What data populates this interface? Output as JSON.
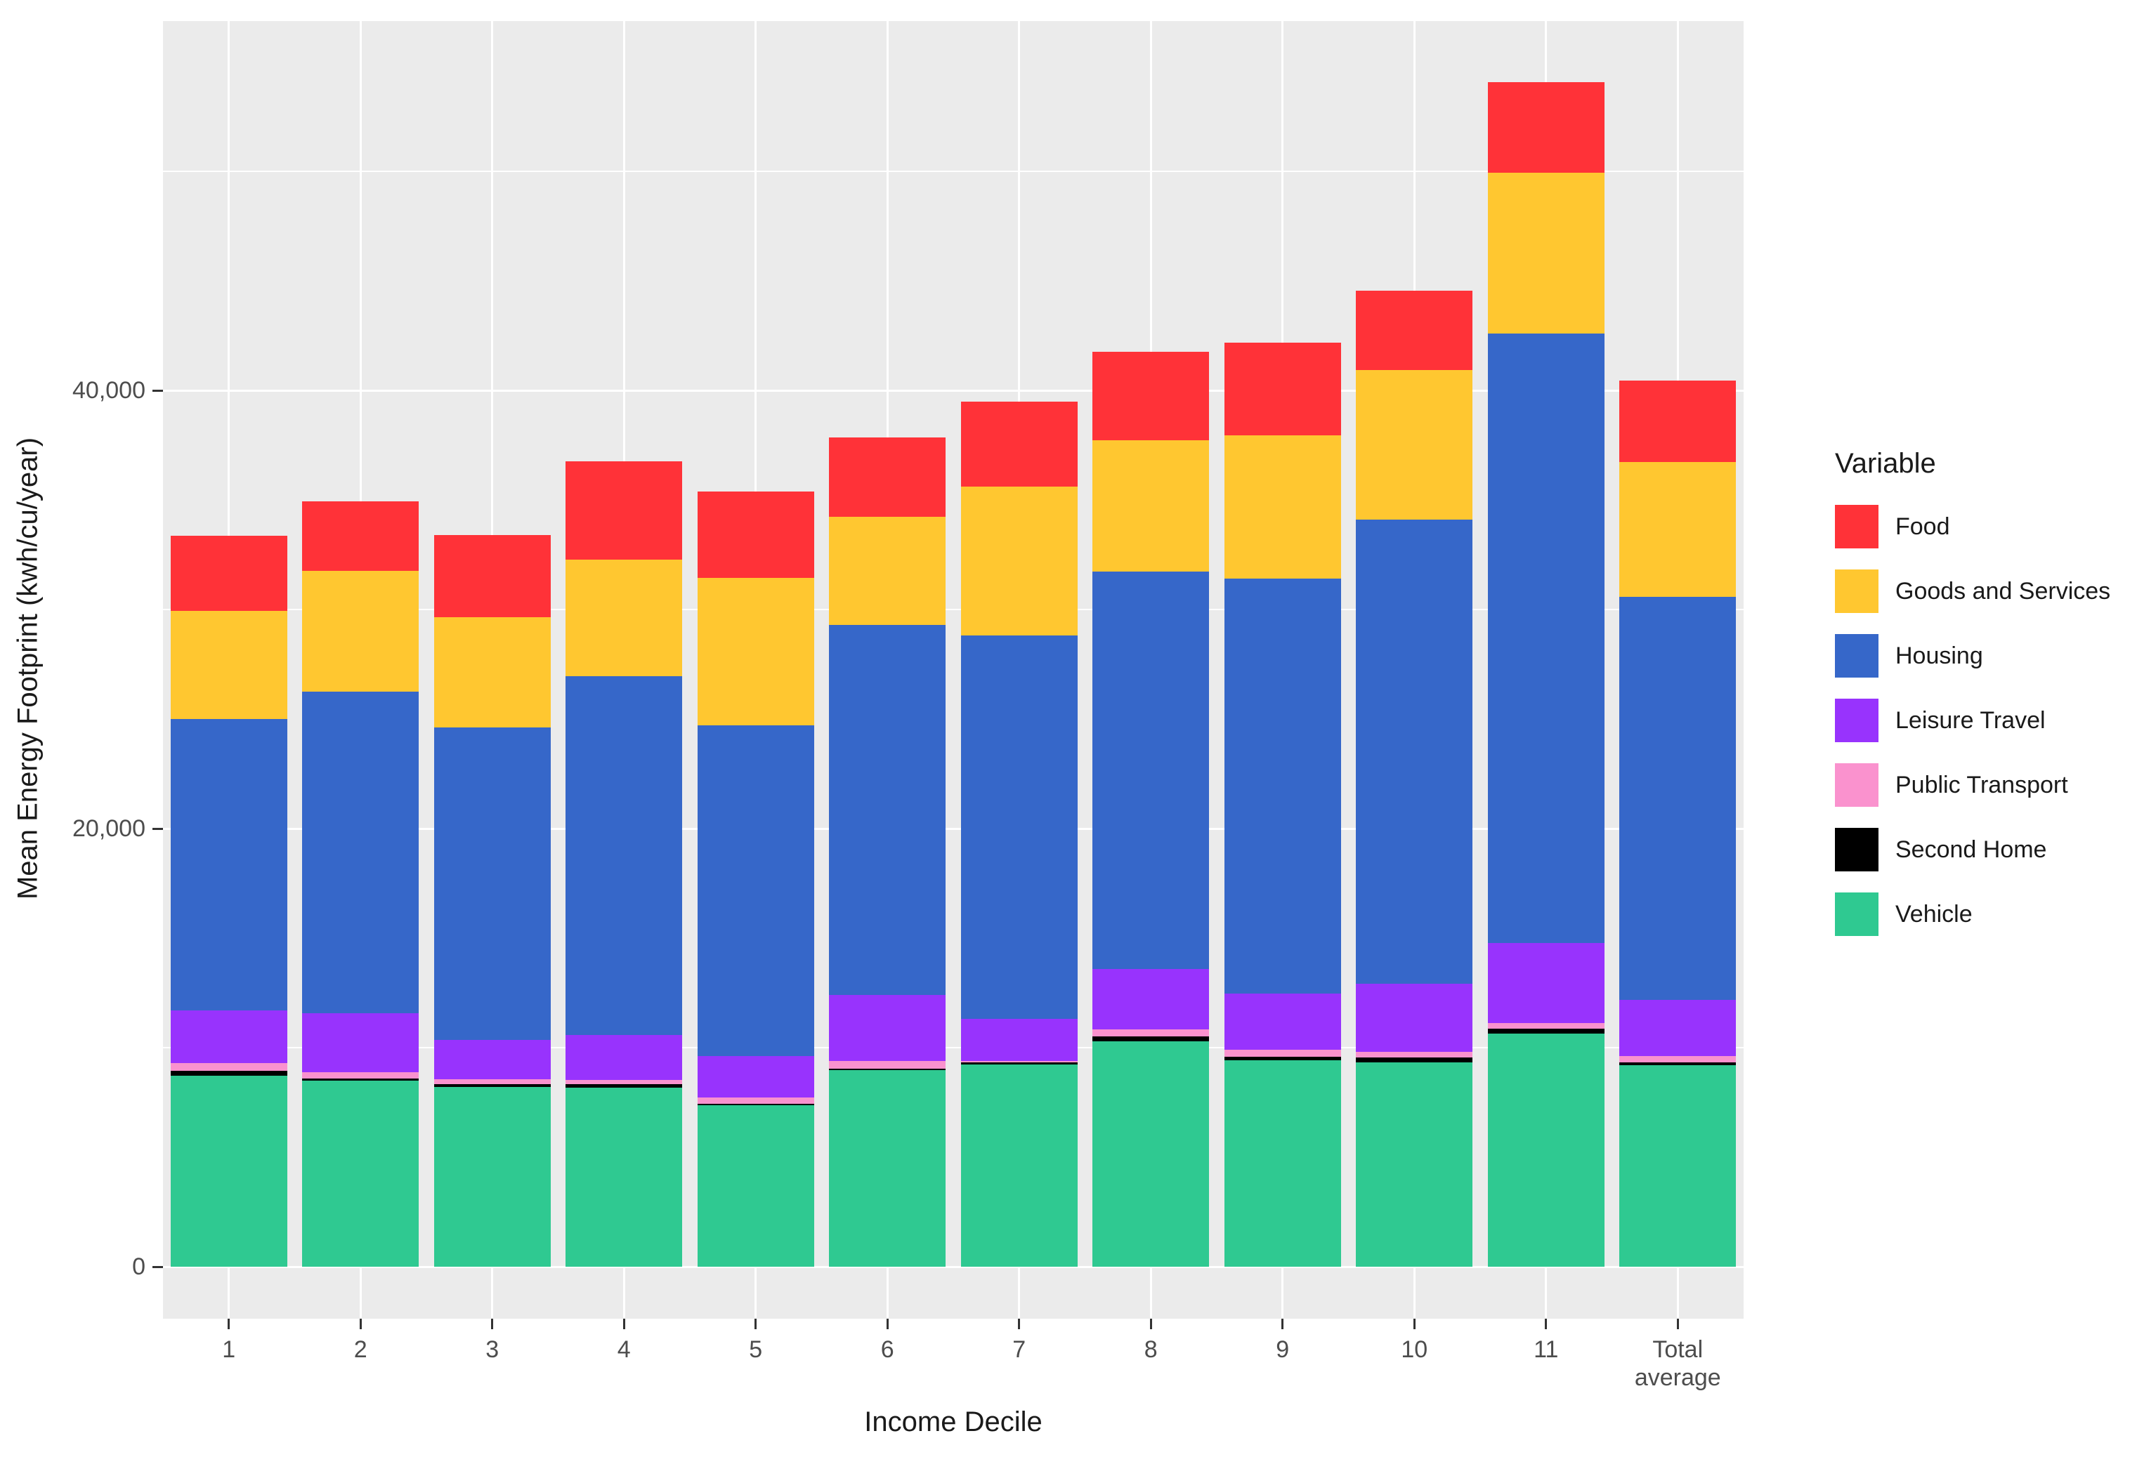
{
  "chart_data": {
    "type": "bar",
    "stacked": true,
    "title": "",
    "xlabel": "Income Decile",
    "ylabel": "Mean Energy Footprint (kwh/cu/year)",
    "legend_title": "Variable",
    "legend_position": "right",
    "grid": true,
    "panel_background": "#EBEBEB",
    "gridline_color": "#FFFFFF",
    "categories": [
      "1",
      "2",
      "3",
      "4",
      "5",
      "6",
      "7",
      "8",
      "9",
      "10",
      "11",
      "Total average"
    ],
    "series": [
      {
        "name": "Food",
        "color": "#FF3238",
        "values": [
          3420,
          3190,
          3740,
          4480,
          3950,
          3640,
          3875,
          4040,
          4230,
          3620,
          4135,
          3720
        ]
      },
      {
        "name": "Goods and Services",
        "color": "#FFC730",
        "values": [
          4950,
          5510,
          5030,
          5320,
          6730,
          4935,
          6800,
          5995,
          6540,
          6825,
          7325,
          6150
        ]
      },
      {
        "name": "Housing",
        "color": "#3667C9",
        "values": [
          13300,
          14680,
          14270,
          16380,
          15095,
          16895,
          17500,
          18140,
          18940,
          21185,
          27835,
          18400
        ]
      },
      {
        "name": "Leisure Travel",
        "color": "#9833FD",
        "values": [
          2405,
          2690,
          1790,
          2055,
          1890,
          3010,
          1925,
          2760,
          2565,
          3110,
          3655,
          2565
        ]
      },
      {
        "name": "Public Transport",
        "color": "#FA92CE",
        "values": [
          355,
          290,
          230,
          195,
          290,
          355,
          65,
          320,
          320,
          260,
          255,
          290
        ]
      },
      {
        "name": "Second Home",
        "color": "#000000",
        "values": [
          220,
          100,
          125,
          160,
          65,
          50,
          95,
          220,
          160,
          220,
          225,
          125
        ]
      },
      {
        "name": "Vehicle",
        "color": "#2FC991",
        "values": [
          8720,
          8490,
          8205,
          8170,
          7370,
          8985,
          9230,
          10290,
          9425,
          9330,
          10640,
          9200
        ]
      }
    ],
    "totals": [
      33370,
      34950,
      33390,
      36760,
      35390,
      37870,
      39490,
      41765,
      42180,
      44550,
      54070,
      40450
    ],
    "stack_order_bottom_to_top": [
      "Vehicle",
      "Second Home",
      "Public Transport",
      "Leisure Travel",
      "Housing",
      "Goods and Services",
      "Food"
    ],
    "legend_order": [
      "Food",
      "Goods and Services",
      "Housing",
      "Leisure Travel",
      "Public Transport",
      "Second Home",
      "Vehicle"
    ],
    "y_ticks": [
      {
        "value": 0,
        "label": "0"
      },
      {
        "value": 20000,
        "label": "20,000"
      },
      {
        "value": 40000,
        "label": "40,000"
      }
    ],
    "y_minor_gridlines": [
      10000,
      30000,
      50000
    ],
    "y_axis_panel_range": [
      -2370,
      56860
    ]
  }
}
